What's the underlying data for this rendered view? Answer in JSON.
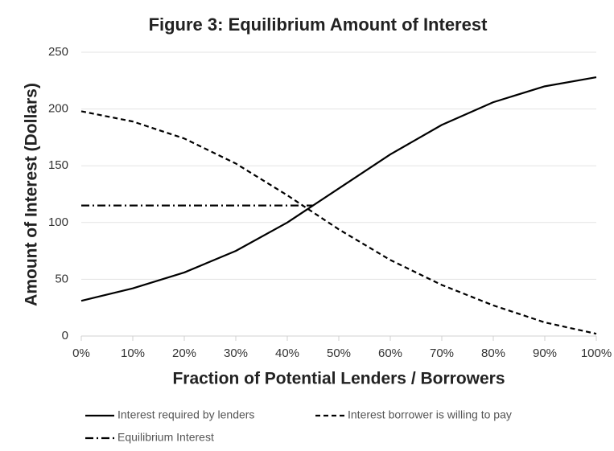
{
  "chart_data": {
    "type": "line",
    "title": "Figure 3: Equilibrium Amount of Interest",
    "x_label": "Fraction of Potential Lenders / Borrowers",
    "y_label": "Amount of Interest (Dollars)",
    "xlim": [
      0,
      100
    ],
    "xticks": [
      {
        "value": 0,
        "label": "0%"
      },
      {
        "value": 10,
        "label": "10%"
      },
      {
        "value": 20,
        "label": "20%"
      },
      {
        "value": 30,
        "label": "30%"
      },
      {
        "value": 40,
        "label": "40%"
      },
      {
        "value": 50,
        "label": "50%"
      },
      {
        "value": 60,
        "label": "60%"
      },
      {
        "value": 70,
        "label": "70%"
      },
      {
        "value": 80,
        "label": "80%"
      },
      {
        "value": 90,
        "label": "90%"
      },
      {
        "value": 100,
        "label": "100%"
      }
    ],
    "ylim": [
      0,
      250
    ],
    "yticks": [
      0,
      50,
      100,
      150,
      200,
      250
    ],
    "grid": true,
    "legend": "bottom",
    "series": [
      {
        "name": "Interest required by lenders",
        "color": "#000000",
        "dash": "solid",
        "x": [
          0,
          10,
          20,
          30,
          40,
          50,
          60,
          70,
          80,
          90,
          100
        ],
        "values": [
          31,
          42,
          56,
          75,
          100,
          130,
          160,
          186,
          206,
          220,
          228
        ]
      },
      {
        "name": "Interest borrower is willing to pay",
        "color": "#000000",
        "dash": "dashed",
        "x": [
          0,
          10,
          20,
          30,
          40,
          50,
          60,
          70,
          80,
          90,
          100
        ],
        "values": [
          198,
          189,
          174,
          152,
          124,
          94,
          67,
          45,
          27,
          12,
          2
        ]
      },
      {
        "name": "Equilibrium Interest",
        "color": "#000000",
        "dash": "dashdot",
        "x": [
          0,
          45
        ],
        "values": [
          115,
          115
        ]
      }
    ]
  }
}
